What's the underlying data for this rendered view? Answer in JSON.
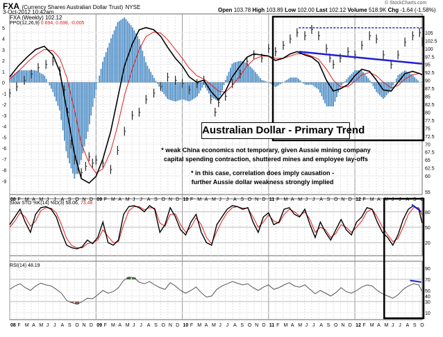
{
  "header": {
    "symbol": "FXA",
    "description": "(Currency Shares Australian Dollar Trust)",
    "exchange": "NYSE",
    "date": "3-Oct-2012 10:42am",
    "open_label": "Open",
    "open": "103.78",
    "high_label": "High",
    "high": "103.89",
    "low_label": "Low",
    "low": "102.00",
    "last_label": "Last",
    "last": "102.12",
    "volume_label": "Volume",
    "volume": "518.9K",
    "chg_label": "Chg",
    "chg": "-1.64 (-1.58%)",
    "watermark": "© StockCharts.com"
  },
  "colors": {
    "price": "#222222",
    "ppo_line": "#000000",
    "ppo_signal": "#e41a1c",
    "histogram": "#4f8fc7",
    "trend": "#1f1fd6",
    "box": "#000000",
    "sto_k": "#000000",
    "sto_d": "#e41a1c",
    "rsi": "#555555",
    "rsi_overbought": "#3a6b3a",
    "rsi_oversold": "#8b5a5a"
  },
  "annotations": {
    "title": "Australian Dollar - Primary Trend",
    "note1_line1": "* weak China economics not temporary, given Aussie mining company",
    "note1_line2": "capital spending contraction, shuttered mines and employee lay-offs",
    "note2_line1": "* in this case, correlation does imply causation -",
    "note2_line2": "further Aussie dollar weakness strongly implied"
  },
  "x_axis": {
    "labels": [
      "08",
      "F",
      "M",
      "A",
      "M",
      "J",
      "J",
      "A",
      "S",
      "O",
      "N",
      "D",
      "09",
      "F",
      "M",
      "A",
      "M",
      "J",
      "J",
      "A",
      "S",
      "O",
      "N",
      "D",
      "10",
      "F",
      "M",
      "A",
      "M",
      "J",
      "J",
      "A",
      "S",
      "O",
      "N",
      "D",
      "11",
      "F",
      "M",
      "A",
      "M",
      "J",
      "J",
      "A",
      "S",
      "O",
      "N",
      "D",
      "12",
      "F",
      "M",
      "A",
      "M",
      "J",
      "J",
      "A",
      "S",
      "O"
    ],
    "bold_labels": [
      "08",
      "09",
      "10",
      "11",
      "12"
    ]
  },
  "chart_data": [
    {
      "type": "line",
      "title": "FXA (Weekly) 102.12",
      "legend": [
        "FXA (Weekly) 102.12",
        "PPO(12,26,9) 0.694, 0.698, -0.005"
      ],
      "ppo_label": "PPO(12,26,9)",
      "ppo_values": "0.694, 0.698, -0.005",
      "x_start": 2008.0,
      "x_end": 2012.78,
      "price_ylim": [
        55,
        110
      ],
      "price_ticks": [
        55,
        60,
        62.5,
        65,
        67.5,
        70,
        72.5,
        75,
        77.5,
        80,
        82.5,
        85,
        87.5,
        90,
        92.5,
        95,
        97.5,
        100,
        102.5,
        105
      ],
      "ppo_ylim": [
        -10,
        6
      ],
      "ppo_ticks": [
        5,
        4,
        3,
        2,
        1,
        0,
        -1,
        -2,
        -3,
        -4,
        -5,
        -6,
        -7,
        -8,
        -9
      ],
      "series": [
        {
          "name": "FXA close",
          "x": [
            2008.0,
            2008.08,
            2008.17,
            2008.25,
            2008.33,
            2008.42,
            2008.5,
            2008.58,
            2008.63,
            2008.67,
            2008.71,
            2008.75,
            2008.79,
            2008.83,
            2008.88,
            2008.92,
            2008.96,
            2009.0,
            2009.08,
            2009.17,
            2009.25,
            2009.33,
            2009.42,
            2009.5,
            2009.58,
            2009.67,
            2009.75,
            2009.83,
            2009.92,
            2010.0,
            2010.08,
            2010.17,
            2010.25,
            2010.33,
            2010.38,
            2010.42,
            2010.5,
            2010.58,
            2010.67,
            2010.75,
            2010.83,
            2010.92,
            2011.0,
            2011.08,
            2011.17,
            2011.25,
            2011.33,
            2011.42,
            2011.5,
            2011.58,
            2011.67,
            2011.71,
            2011.75,
            2011.83,
            2011.92,
            2012.0,
            2012.08,
            2012.17,
            2012.25,
            2012.33,
            2012.42,
            2012.5,
            2012.58,
            2012.67,
            2012.75,
            2012.78
          ],
          "y": [
            86,
            88,
            90,
            92,
            94,
            95,
            96,
            93,
            87,
            80,
            70,
            65,
            62,
            61,
            63,
            66,
            64,
            65,
            64,
            62,
            68,
            74,
            79,
            80,
            84,
            86,
            88,
            91,
            90,
            89,
            87,
            89,
            90,
            84,
            80,
            83,
            85,
            89,
            92,
            96,
            98,
            97,
            100,
            99,
            101,
            103,
            105,
            104,
            106,
            104,
            100,
            97,
            95,
            97,
            99,
            98,
            101,
            104,
            103,
            98,
            95,
            98,
            102,
            104,
            105,
            102.12
          ]
        },
        {
          "name": "PPO line",
          "x": [
            2008.0,
            2008.1,
            2008.2,
            2008.3,
            2008.4,
            2008.5,
            2008.58,
            2008.66,
            2008.75,
            2008.83,
            2008.92,
            2009.0,
            2009.08,
            2009.17,
            2009.25,
            2009.33,
            2009.42,
            2009.5,
            2009.58,
            2009.67,
            2009.75,
            2009.83,
            2009.92,
            2010.0,
            2010.08,
            2010.17,
            2010.25,
            2010.33,
            2010.42,
            2010.5,
            2010.58,
            2010.67,
            2010.75,
            2010.83,
            2010.92,
            2011.0,
            2011.08,
            2011.17,
            2011.25,
            2011.33,
            2011.42,
            2011.5,
            2011.58,
            2011.67,
            2011.75,
            2011.83,
            2011.92,
            2012.0,
            2012.08,
            2012.17,
            2012.25,
            2012.33,
            2012.42,
            2012.5,
            2012.58,
            2012.67,
            2012.75,
            2012.78
          ],
          "y": [
            0.5,
            1.5,
            2.3,
            3.0,
            3.3,
            2.5,
            1.0,
            -2.5,
            -6.5,
            -8.8,
            -9.2,
            -8.6,
            -7.0,
            -4.5,
            -1.5,
            1.5,
            3.5,
            4.8,
            5.0,
            4.8,
            4.2,
            3.2,
            2.2,
            1.5,
            0.5,
            0.0,
            0.2,
            -0.8,
            -1.6,
            -0.8,
            0.5,
            1.5,
            2.3,
            2.6,
            2.5,
            2.4,
            2.0,
            2.2,
            2.6,
            2.8,
            2.5,
            2.3,
            1.8,
            0.2,
            -0.8,
            -0.6,
            -0.2,
            0.6,
            1.2,
            1.0,
            0.2,
            -0.7,
            -0.8,
            0.0,
            0.8,
            1.0,
            0.8,
            0.69
          ]
        },
        {
          "name": "PPO signal",
          "x": [
            2008.0,
            2008.1,
            2008.2,
            2008.3,
            2008.4,
            2008.5,
            2008.58,
            2008.66,
            2008.75,
            2008.83,
            2008.92,
            2009.0,
            2009.08,
            2009.17,
            2009.25,
            2009.33,
            2009.42,
            2009.5,
            2009.58,
            2009.67,
            2009.75,
            2009.83,
            2009.92,
            2010.0,
            2010.08,
            2010.17,
            2010.25,
            2010.33,
            2010.42,
            2010.5,
            2010.58,
            2010.67,
            2010.75,
            2010.83,
            2010.92,
            2011.0,
            2011.08,
            2011.17,
            2011.25,
            2011.33,
            2011.42,
            2011.5,
            2011.58,
            2011.67,
            2011.75,
            2011.83,
            2011.92,
            2012.0,
            2012.08,
            2012.17,
            2012.25,
            2012.33,
            2012.42,
            2012.5,
            2012.58,
            2012.67,
            2012.75,
            2012.78
          ],
          "y": [
            0.3,
            1.0,
            1.8,
            2.5,
            3.0,
            2.9,
            2.2,
            0.5,
            -2.5,
            -5.6,
            -7.4,
            -8.3,
            -7.9,
            -6.3,
            -4.0,
            -1.2,
            1.2,
            3.0,
            4.2,
            4.6,
            4.5,
            3.9,
            3.0,
            2.2,
            1.3,
            0.6,
            0.3,
            -0.2,
            -0.8,
            -0.9,
            -0.3,
            0.6,
            1.5,
            2.1,
            2.4,
            2.4,
            2.2,
            2.2,
            2.4,
            2.6,
            2.6,
            2.4,
            2.1,
            1.2,
            0.2,
            -0.4,
            -0.4,
            0.1,
            0.7,
            0.9,
            0.6,
            0.0,
            -0.5,
            -0.3,
            0.3,
            0.7,
            0.8,
            0.7
          ]
        }
      ]
    },
    {
      "type": "line",
      "title": "Slow STO %K(14) %D(3) 58.06, 73.48",
      "legend_prefix": "Slow STO %K(14) %D(3) 58.06,",
      "legend_d": "73.48",
      "ylim": [
        0,
        100
      ],
      "ticks": [
        80,
        50,
        20
      ],
      "series": [
        {
          "name": "%K",
          "x": [
            2008.0,
            2008.06,
            2008.12,
            2008.18,
            2008.24,
            2008.3,
            2008.36,
            2008.42,
            2008.48,
            2008.54,
            2008.6,
            2008.66,
            2008.72,
            2008.78,
            2008.84,
            2008.9,
            2008.96,
            2009.02,
            2009.08,
            2009.14,
            2009.2,
            2009.26,
            2009.32,
            2009.38,
            2009.44,
            2009.5,
            2009.56,
            2009.62,
            2009.68,
            2009.74,
            2009.8,
            2009.86,
            2009.92,
            2009.98,
            2010.04,
            2010.1,
            2010.16,
            2010.22,
            2010.28,
            2010.34,
            2010.4,
            2010.46,
            2010.52,
            2010.58,
            2010.64,
            2010.7,
            2010.76,
            2010.82,
            2010.88,
            2010.94,
            2011.0,
            2011.06,
            2011.12,
            2011.18,
            2011.24,
            2011.3,
            2011.36,
            2011.42,
            2011.48,
            2011.54,
            2011.6,
            2011.66,
            2011.72,
            2011.78,
            2011.84,
            2011.9,
            2011.96,
            2012.02,
            2012.08,
            2012.14,
            2012.2,
            2012.26,
            2012.32,
            2012.38,
            2012.44,
            2012.5,
            2012.56,
            2012.62,
            2012.68,
            2012.74,
            2012.78
          ],
          "y": [
            55,
            70,
            85,
            60,
            40,
            75,
            88,
            90,
            85,
            70,
            40,
            15,
            10,
            8,
            12,
            25,
            18,
            30,
            60,
            20,
            15,
            25,
            75,
            90,
            92,
            88,
            80,
            92,
            85,
            40,
            55,
            88,
            70,
            45,
            35,
            60,
            75,
            40,
            20,
            15,
            55,
            70,
            85,
            92,
            90,
            85,
            88,
            60,
            40,
            70,
            78,
            55,
            60,
            85,
            88,
            75,
            70,
            85,
            55,
            30,
            60,
            40,
            25,
            45,
            65,
            45,
            35,
            60,
            70,
            88,
            85,
            60,
            40,
            30,
            15,
            35,
            65,
            85,
            92,
            85,
            58
          ]
        },
        {
          "name": "%D",
          "x": [
            2008.0,
            2008.06,
            2008.12,
            2008.18,
            2008.24,
            2008.3,
            2008.36,
            2008.42,
            2008.48,
            2008.54,
            2008.6,
            2008.66,
            2008.72,
            2008.78,
            2008.84,
            2008.9,
            2008.96,
            2009.02,
            2009.08,
            2009.14,
            2009.2,
            2009.26,
            2009.32,
            2009.38,
            2009.44,
            2009.5,
            2009.56,
            2009.62,
            2009.68,
            2009.74,
            2009.8,
            2009.86,
            2009.92,
            2009.98,
            2010.04,
            2010.1,
            2010.16,
            2010.22,
            2010.28,
            2010.34,
            2010.4,
            2010.46,
            2010.52,
            2010.58,
            2010.64,
            2010.7,
            2010.76,
            2010.82,
            2010.88,
            2010.94,
            2011.0,
            2011.06,
            2011.12,
            2011.18,
            2011.24,
            2011.3,
            2011.36,
            2011.42,
            2011.48,
            2011.54,
            2011.6,
            2011.66,
            2011.72,
            2011.78,
            2011.84,
            2011.9,
            2011.96,
            2012.02,
            2012.08,
            2012.14,
            2012.2,
            2012.26,
            2012.32,
            2012.38,
            2012.44,
            2012.5,
            2012.56,
            2012.62,
            2012.68,
            2012.74,
            2012.78
          ],
          "y": [
            50,
            62,
            78,
            70,
            52,
            62,
            82,
            88,
            87,
            78,
            55,
            28,
            14,
            10,
            10,
            18,
            20,
            25,
            45,
            32,
            20,
            22,
            55,
            82,
            90,
            90,
            84,
            88,
            87,
            58,
            52,
            75,
            76,
            55,
            40,
            50,
            68,
            55,
            30,
            18,
            42,
            62,
            78,
            88,
            90,
            87,
            87,
            70,
            50,
            60,
            74,
            62,
            58,
            75,
            85,
            80,
            72,
            80,
            65,
            40,
            50,
            45,
            30,
            38,
            55,
            50,
            40,
            50,
            62,
            80,
            85,
            70,
            50,
            35,
            22,
            28,
            50,
            75,
            88,
            88,
            73
          ]
        }
      ]
    },
    {
      "type": "line",
      "title": "RSI(14) 48.19",
      "legend": "RSI(14) 48.19",
      "ylim": [
        0,
        100
      ],
      "ticks": [
        90,
        70,
        50,
        40,
        30,
        10
      ],
      "series": [
        {
          "name": "RSI",
          "x": [
            2008.0,
            2008.06,
            2008.12,
            2008.18,
            2008.24,
            2008.3,
            2008.36,
            2008.42,
            2008.48,
            2008.54,
            2008.6,
            2008.66,
            2008.72,
            2008.78,
            2008.84,
            2008.9,
            2008.96,
            2009.02,
            2009.08,
            2009.14,
            2009.2,
            2009.26,
            2009.32,
            2009.38,
            2009.44,
            2009.5,
            2009.56,
            2009.62,
            2009.68,
            2009.74,
            2009.8,
            2009.86,
            2009.92,
            2009.98,
            2010.04,
            2010.1,
            2010.16,
            2010.22,
            2010.28,
            2010.34,
            2010.4,
            2010.46,
            2010.52,
            2010.58,
            2010.64,
            2010.7,
            2010.76,
            2010.82,
            2010.88,
            2010.94,
            2011.0,
            2011.06,
            2011.12,
            2011.18,
            2011.24,
            2011.3,
            2011.36,
            2011.42,
            2011.48,
            2011.54,
            2011.6,
            2011.66,
            2011.72,
            2011.78,
            2011.84,
            2011.9,
            2011.96,
            2012.02,
            2012.08,
            2012.14,
            2012.2,
            2012.26,
            2012.32,
            2012.38,
            2012.44,
            2012.5,
            2012.56,
            2012.62,
            2012.68,
            2012.74,
            2012.78
          ],
          "y": [
            52,
            58,
            62,
            55,
            50,
            58,
            63,
            60,
            58,
            52,
            45,
            32,
            28,
            25,
            30,
            36,
            35,
            42,
            50,
            45,
            48,
            55,
            68,
            74,
            73,
            65,
            62,
            66,
            60,
            55,
            52,
            64,
            58,
            50,
            45,
            50,
            56,
            46,
            38,
            40,
            52,
            58,
            62,
            66,
            63,
            60,
            62,
            55,
            50,
            56,
            60,
            52,
            55,
            60,
            64,
            58,
            56,
            60,
            52,
            44,
            50,
            45,
            40,
            46,
            55,
            48,
            45,
            50,
            56,
            60,
            58,
            50,
            44,
            40,
            36,
            42,
            52,
            58,
            62,
            60,
            48.19
          ]
        }
      ]
    }
  ]
}
